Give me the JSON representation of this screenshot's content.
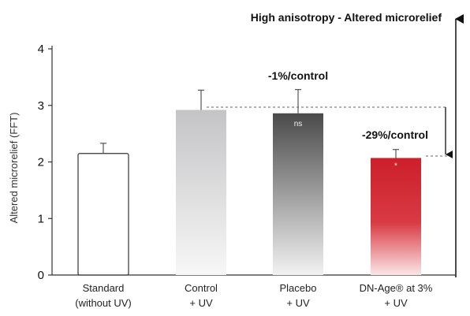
{
  "chart_data": {
    "type": "bar",
    "categories": [
      [
        "Standard",
        "(without UV)"
      ],
      [
        "Control",
        "+ UV"
      ],
      [
        "Placebo",
        "+ UV"
      ],
      [
        "DN-Age® at 3%",
        "+ UV"
      ]
    ],
    "values": [
      2.15,
      2.92,
      2.86,
      2.07
    ],
    "errors": [
      0.18,
      0.35,
      0.42,
      0.15
    ],
    "bar_styles": [
      "white-outline",
      "light-gray-gradient",
      "dark-gray-gradient",
      "red-gradient"
    ],
    "inbar_labels": [
      "",
      "",
      "ns",
      "*"
    ],
    "ylabel": "Altered microrelief (FFT)",
    "ylim": [
      0,
      4
    ],
    "yticks": [
      0,
      1,
      2,
      3,
      4
    ],
    "title": "High anisotropy - Altered microrelief",
    "annotations": {
      "placebo": "-1%/control",
      "dnage": "-29%/control"
    },
    "grid": false,
    "colors": {
      "light_gray_top": "#c4c4c6",
      "dark_gray_top": "#4a4a4a",
      "red_top": "#cc1f2b",
      "axis": "#333333"
    }
  }
}
